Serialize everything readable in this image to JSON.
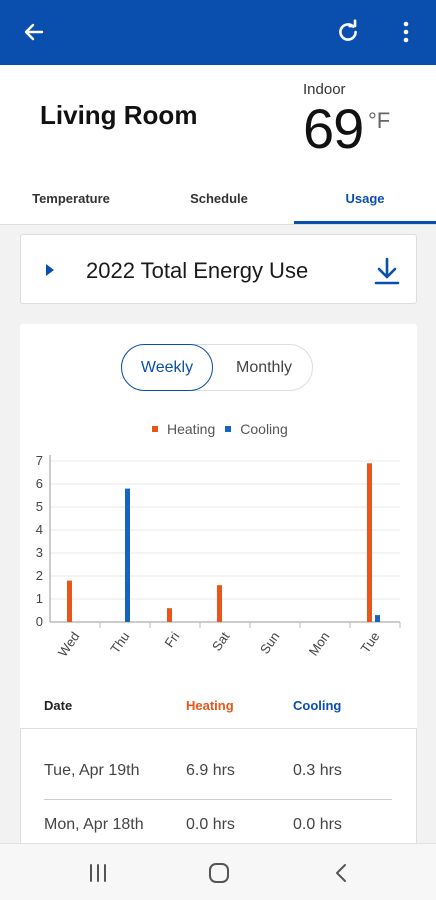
{
  "room": {
    "title": "Living Room",
    "indoor_label": "Indoor",
    "indoor_temp": "69",
    "indoor_unit": "°F"
  },
  "tabs": [
    {
      "label": "Temperature"
    },
    {
      "label": "Schedule"
    },
    {
      "label": "Usage",
      "active": true
    }
  ],
  "energy_card": {
    "title": "2022 Total Energy Use"
  },
  "toggle": {
    "weekly": "Weekly",
    "monthly": "Monthly",
    "selected": "Weekly"
  },
  "colors": {
    "brand": "#0a4fad",
    "heating": "#e8561b",
    "cooling": "#1565c0"
  },
  "chart_data": {
    "type": "bar",
    "categories": [
      "Wed",
      "Thu",
      "Fri",
      "Sat",
      "Sun",
      "Mon",
      "Tue"
    ],
    "series": [
      {
        "name": "Heating",
        "values": [
          1.8,
          0,
          0.6,
          1.6,
          0,
          0,
          6.9
        ]
      },
      {
        "name": "Cooling",
        "values": [
          0,
          5.8,
          0,
          0,
          0,
          0,
          0.3
        ]
      }
    ],
    "yticks": [
      "0",
      "1",
      "2",
      "3",
      "4",
      "5",
      "6",
      "7"
    ],
    "ylim": [
      0,
      7
    ],
    "legend": "top-center",
    "grid": true
  },
  "table": {
    "headers": {
      "date": "Date",
      "heating": "Heating",
      "cooling": "Cooling"
    },
    "rows": [
      {
        "date": "Tue, Apr 19th",
        "heating": "6.9 hrs",
        "cooling": "0.3 hrs"
      },
      {
        "date": "Mon, Apr 18th",
        "heating": "0.0 hrs",
        "cooling": "0.0 hrs"
      }
    ]
  },
  "icons": {
    "back": "arrow-left-icon",
    "refresh": "refresh-icon",
    "more": "more-vertical-icon",
    "caret": "caret-right-icon",
    "download": "download-icon",
    "nav_recents": "recents-icon",
    "nav_home": "home-icon",
    "nav_back": "back-icon"
  }
}
